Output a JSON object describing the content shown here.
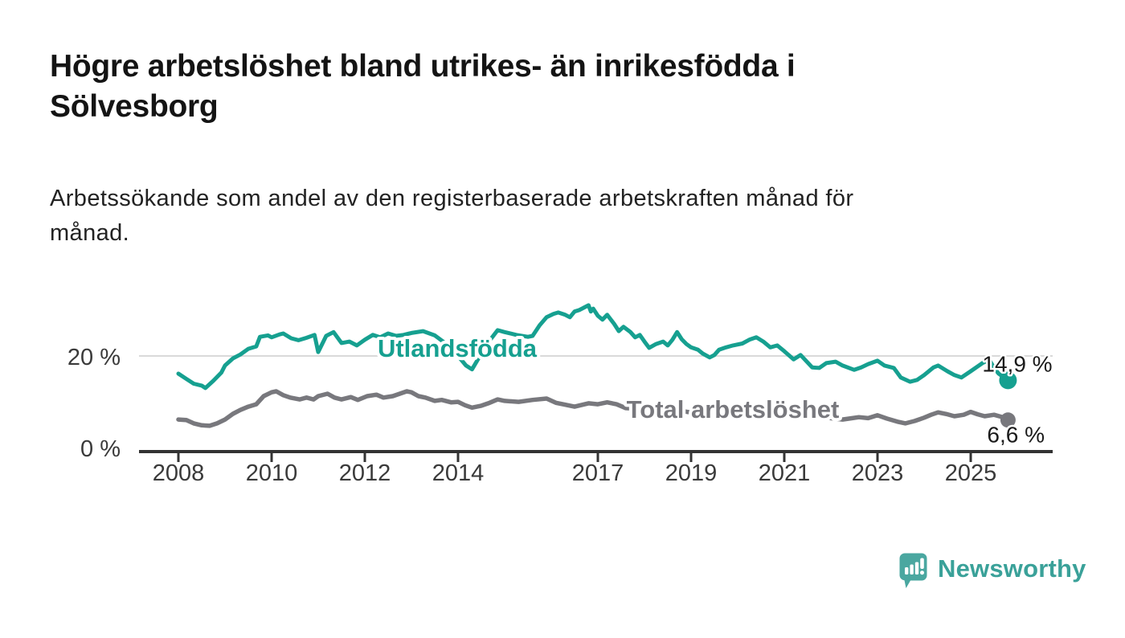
{
  "header": {
    "title_line1": "Högre arbetslöshet bland utrikes- än inrikesfödda i",
    "title_line2": "Sölvesborg",
    "subtitle_line1": "Arbetssökande som andel av den registerbaserade arbetskraften månad för",
    "subtitle_line2": "månad."
  },
  "chart_data": {
    "type": "line",
    "title": "Högre arbetslöshet bland utrikes- än inrikesfödda i Sölvesborg",
    "subtitle": "Arbetssökande som andel av den registerbaserade arbetskraften månad för månad.",
    "unit": "%",
    "grid": "horizontal-20-only",
    "legend_position": "inline-labels",
    "colors": {
      "grid": "#d9d9d9",
      "axis": "#333333",
      "tick_text": "#3a3a3a",
      "value_text": "#1a1a1a"
    },
    "x_axis": {
      "range": [
        2007.2,
        2026.7
      ],
      "ticks": [
        2008,
        2010,
        2012,
        2014,
        2017,
        2019,
        2021,
        2023,
        2025
      ]
    },
    "y_axis": {
      "ylim": [
        0,
        33
      ],
      "ticks": [
        {
          "value": 0,
          "label": "0 %"
        },
        {
          "value": 20,
          "label": "20 %"
        }
      ]
    },
    "series": [
      {
        "name": "Utlandsfödda",
        "color": "#16a090",
        "end_label": "14,9 %",
        "end_value": 14.9,
        "points": [
          [
            2008.0,
            16.3
          ],
          [
            2008.17,
            15.2
          ],
          [
            2008.33,
            14.2
          ],
          [
            2008.5,
            13.8
          ],
          [
            2008.58,
            13.3
          ],
          [
            2008.75,
            14.8
          ],
          [
            2008.92,
            16.5
          ],
          [
            2009.0,
            18.0
          ],
          [
            2009.17,
            19.5
          ],
          [
            2009.33,
            20.3
          ],
          [
            2009.5,
            21.5
          ],
          [
            2009.67,
            22.0
          ],
          [
            2009.75,
            24.0
          ],
          [
            2009.92,
            24.3
          ],
          [
            2010.0,
            23.9
          ],
          [
            2010.17,
            24.5
          ],
          [
            2010.25,
            24.7
          ],
          [
            2010.42,
            23.7
          ],
          [
            2010.58,
            23.3
          ],
          [
            2010.75,
            23.8
          ],
          [
            2010.92,
            24.4
          ],
          [
            2011.0,
            20.8
          ],
          [
            2011.17,
            24.2
          ],
          [
            2011.33,
            25.0
          ],
          [
            2011.5,
            22.7
          ],
          [
            2011.67,
            23.0
          ],
          [
            2011.83,
            22.2
          ],
          [
            2012.0,
            23.4
          ],
          [
            2012.17,
            24.4
          ],
          [
            2012.33,
            23.9
          ],
          [
            2012.5,
            24.7
          ],
          [
            2012.67,
            24.2
          ],
          [
            2012.83,
            24.4
          ],
          [
            2013.0,
            24.8
          ],
          [
            2013.25,
            25.2
          ],
          [
            2013.5,
            24.3
          ],
          [
            2013.75,
            22.5
          ],
          [
            2014.0,
            20.0
          ],
          [
            2014.17,
            18.0
          ],
          [
            2014.3,
            17.2
          ],
          [
            2014.5,
            20.5
          ],
          [
            2014.7,
            23.5
          ],
          [
            2014.85,
            25.4
          ],
          [
            2015.0,
            25.0
          ],
          [
            2015.25,
            24.4
          ],
          [
            2015.5,
            24.0
          ],
          [
            2015.6,
            24.2
          ],
          [
            2015.75,
            26.4
          ],
          [
            2015.9,
            28.1
          ],
          [
            2016.05,
            28.8
          ],
          [
            2016.15,
            29.1
          ],
          [
            2016.3,
            28.6
          ],
          [
            2016.4,
            28.1
          ],
          [
            2016.5,
            29.3
          ],
          [
            2016.6,
            29.6
          ],
          [
            2016.7,
            30.1
          ],
          [
            2016.8,
            30.6
          ],
          [
            2016.85,
            29.3
          ],
          [
            2016.9,
            29.9
          ],
          [
            2017.0,
            28.4
          ],
          [
            2017.1,
            27.6
          ],
          [
            2017.2,
            28.6
          ],
          [
            2017.35,
            26.7
          ],
          [
            2017.45,
            25.2
          ],
          [
            2017.55,
            26.1
          ],
          [
            2017.7,
            25.0
          ],
          [
            2017.8,
            23.9
          ],
          [
            2017.9,
            24.4
          ],
          [
            2018.0,
            23.0
          ],
          [
            2018.1,
            21.7
          ],
          [
            2018.25,
            22.5
          ],
          [
            2018.4,
            23.0
          ],
          [
            2018.5,
            22.2
          ],
          [
            2018.6,
            23.4
          ],
          [
            2018.7,
            25.0
          ],
          [
            2018.8,
            23.5
          ],
          [
            2018.9,
            22.5
          ],
          [
            2019.0,
            21.8
          ],
          [
            2019.15,
            21.3
          ],
          [
            2019.25,
            20.5
          ],
          [
            2019.4,
            19.7
          ],
          [
            2019.5,
            20.2
          ],
          [
            2019.6,
            21.3
          ],
          [
            2019.75,
            21.8
          ],
          [
            2019.9,
            22.2
          ],
          [
            2020.1,
            22.6
          ],
          [
            2020.25,
            23.4
          ],
          [
            2020.4,
            23.9
          ],
          [
            2020.55,
            23.0
          ],
          [
            2020.7,
            21.8
          ],
          [
            2020.85,
            22.2
          ],
          [
            2021.0,
            21.0
          ],
          [
            2021.2,
            19.3
          ],
          [
            2021.35,
            20.2
          ],
          [
            2021.6,
            17.6
          ],
          [
            2021.75,
            17.5
          ],
          [
            2021.9,
            18.5
          ],
          [
            2022.1,
            18.8
          ],
          [
            2022.25,
            18.0
          ],
          [
            2022.5,
            17.1
          ],
          [
            2022.65,
            17.6
          ],
          [
            2022.8,
            18.3
          ],
          [
            2023.0,
            19.0
          ],
          [
            2023.15,
            18.0
          ],
          [
            2023.35,
            17.5
          ],
          [
            2023.5,
            15.5
          ],
          [
            2023.7,
            14.6
          ],
          [
            2023.85,
            15.0
          ],
          [
            2024.0,
            16.0
          ],
          [
            2024.2,
            17.6
          ],
          [
            2024.3,
            18.0
          ],
          [
            2024.5,
            16.8
          ],
          [
            2024.65,
            16.0
          ],
          [
            2024.8,
            15.5
          ],
          [
            2025.0,
            16.8
          ],
          [
            2025.25,
            18.5
          ],
          [
            2025.4,
            19.2
          ],
          [
            2025.5,
            17.5
          ],
          [
            2025.6,
            16.3
          ],
          [
            2025.67,
            15.8
          ],
          [
            2025.8,
            14.9
          ]
        ]
      },
      {
        "name": "Total arbetslöshet",
        "color": "#78787d",
        "end_label": "6,6 %",
        "end_value": 6.6,
        "points": [
          [
            2008.0,
            6.7
          ],
          [
            2008.17,
            6.6
          ],
          [
            2008.33,
            5.9
          ],
          [
            2008.5,
            5.5
          ],
          [
            2008.67,
            5.4
          ],
          [
            2008.83,
            5.9
          ],
          [
            2009.0,
            6.7
          ],
          [
            2009.17,
            7.9
          ],
          [
            2009.33,
            8.7
          ],
          [
            2009.5,
            9.4
          ],
          [
            2009.67,
            9.9
          ],
          [
            2009.83,
            11.6
          ],
          [
            2010.0,
            12.4
          ],
          [
            2010.1,
            12.6
          ],
          [
            2010.25,
            11.8
          ],
          [
            2010.4,
            11.3
          ],
          [
            2010.6,
            10.9
          ],
          [
            2010.75,
            11.3
          ],
          [
            2010.9,
            10.9
          ],
          [
            2011.0,
            11.6
          ],
          [
            2011.2,
            12.1
          ],
          [
            2011.35,
            11.3
          ],
          [
            2011.5,
            10.9
          ],
          [
            2011.7,
            11.4
          ],
          [
            2011.85,
            10.8
          ],
          [
            2012.05,
            11.6
          ],
          [
            2012.25,
            11.9
          ],
          [
            2012.4,
            11.3
          ],
          [
            2012.6,
            11.6
          ],
          [
            2012.75,
            12.1
          ],
          [
            2012.9,
            12.6
          ],
          [
            2013.0,
            12.4
          ],
          [
            2013.15,
            11.6
          ],
          [
            2013.3,
            11.3
          ],
          [
            2013.5,
            10.6
          ],
          [
            2013.65,
            10.8
          ],
          [
            2013.85,
            10.3
          ],
          [
            2014.0,
            10.4
          ],
          [
            2014.15,
            9.7
          ],
          [
            2014.3,
            9.2
          ],
          [
            2014.5,
            9.6
          ],
          [
            2014.65,
            10.1
          ],
          [
            2014.85,
            10.9
          ],
          [
            2015.0,
            10.6
          ],
          [
            2015.3,
            10.4
          ],
          [
            2015.6,
            10.8
          ],
          [
            2015.9,
            11.1
          ],
          [
            2016.1,
            10.2
          ],
          [
            2016.25,
            9.9
          ],
          [
            2016.5,
            9.4
          ],
          [
            2016.8,
            10.1
          ],
          [
            2017.0,
            9.9
          ],
          [
            2017.2,
            10.3
          ],
          [
            2017.4,
            9.9
          ],
          [
            2017.6,
            9.1
          ],
          [
            2017.9,
            8.9
          ],
          [
            2018.2,
            8.6
          ],
          [
            2018.5,
            8.3
          ],
          [
            2018.8,
            8.5
          ],
          [
            2019.1,
            8.0
          ],
          [
            2019.4,
            7.8
          ],
          [
            2019.7,
            7.9
          ],
          [
            2020.0,
            8.3
          ],
          [
            2020.3,
            8.9
          ],
          [
            2020.5,
            9.2
          ],
          [
            2020.8,
            8.7
          ],
          [
            2021.1,
            8.1
          ],
          [
            2021.4,
            7.6
          ],
          [
            2021.7,
            7.3
          ],
          [
            2022.0,
            7.0
          ],
          [
            2022.25,
            6.7
          ],
          [
            2022.4,
            6.9
          ],
          [
            2022.6,
            7.2
          ],
          [
            2022.8,
            7.0
          ],
          [
            2023.0,
            7.6
          ],
          [
            2023.2,
            6.9
          ],
          [
            2023.45,
            6.2
          ],
          [
            2023.6,
            5.9
          ],
          [
            2023.8,
            6.4
          ],
          [
            2024.0,
            7.1
          ],
          [
            2024.15,
            7.7
          ],
          [
            2024.3,
            8.2
          ],
          [
            2024.5,
            7.8
          ],
          [
            2024.65,
            7.4
          ],
          [
            2024.85,
            7.7
          ],
          [
            2025.0,
            8.3
          ],
          [
            2025.15,
            7.8
          ],
          [
            2025.3,
            7.4
          ],
          [
            2025.5,
            7.7
          ],
          [
            2025.65,
            7.3
          ],
          [
            2025.8,
            6.6
          ]
        ]
      }
    ]
  },
  "branding": {
    "logo_text": "Newsworthy",
    "logo_text_color": "#3aa199",
    "logo_icon_color": "#4aa7a0",
    "logo_icon_name": "speech-bubble-bar-chart-icon"
  }
}
